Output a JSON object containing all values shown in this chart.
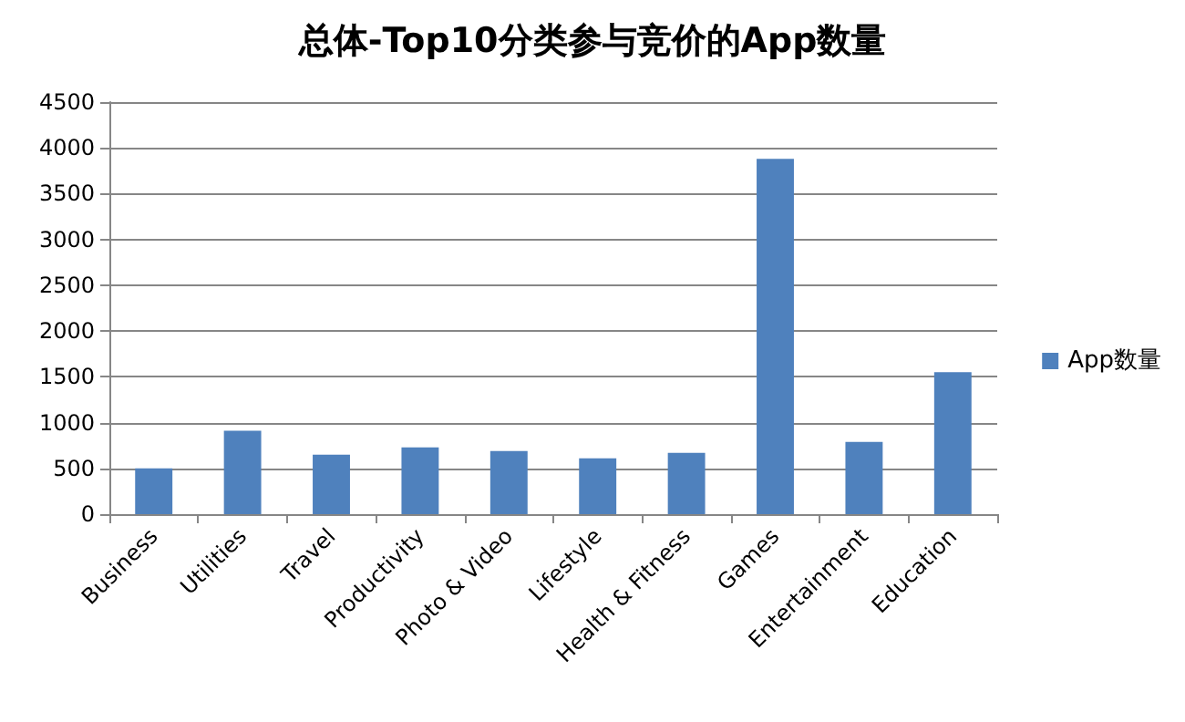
{
  "chart_data": {
    "type": "bar",
    "title": "总体-Top10分类参与竞价的App数量",
    "categories": [
      "Business",
      "Utilities",
      "Travel",
      "Productivity",
      "Photo & Video",
      "Lifestyle",
      "Health & Fitness",
      "Games",
      "Entertainment",
      "Education"
    ],
    "series": [
      {
        "name": "App数量",
        "color": "#4f81bd",
        "values": [
          500,
          910,
          650,
          730,
          690,
          610,
          670,
          3880,
          790,
          1550
        ]
      }
    ],
    "ylim": [
      0,
      4500
    ],
    "yticks": [
      0,
      500,
      1000,
      1500,
      2000,
      2500,
      3000,
      3500,
      4000,
      4500
    ],
    "grid": "y",
    "legend": "right"
  }
}
